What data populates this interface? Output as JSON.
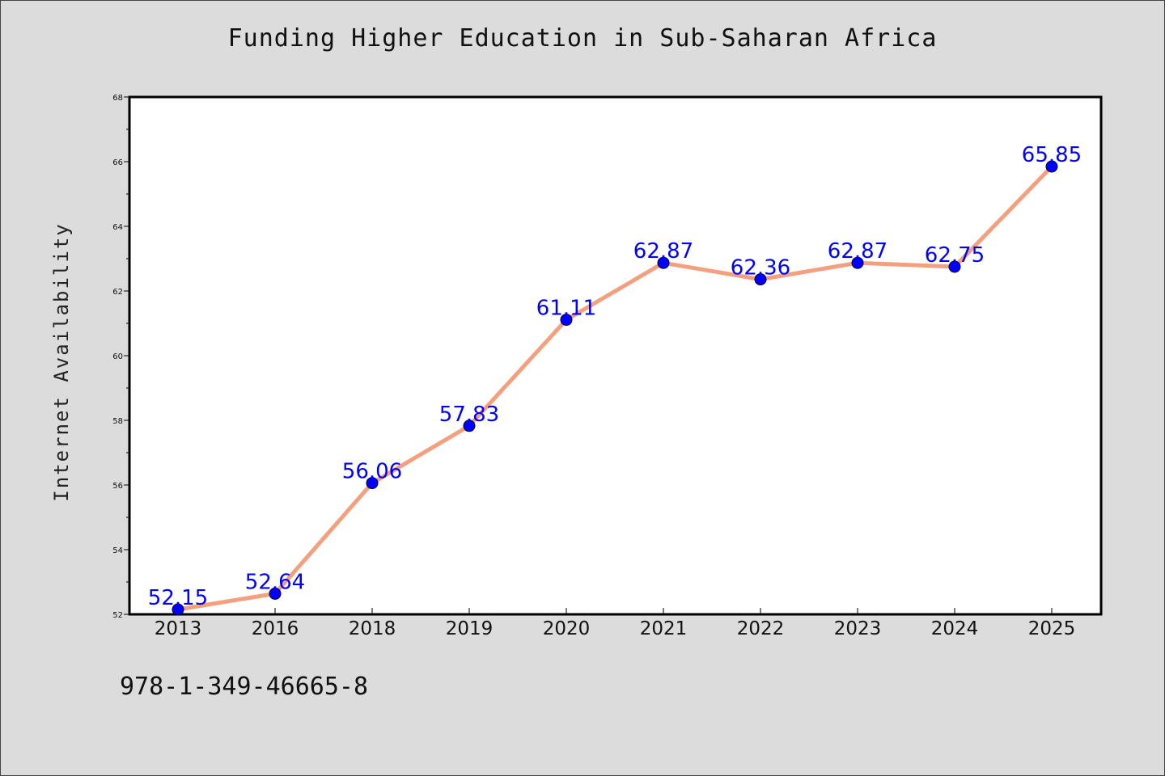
{
  "colors": {
    "background": "#dcdcdc",
    "plot_background": "#ffffff",
    "line": "#f4a07f",
    "marker": "#0000ff",
    "data_label": "#0000ff"
  },
  "footnote": "978-1-349-46665-8",
  "chart_data": {
    "type": "line",
    "title": "Funding Higher Education in Sub-Saharan Africa",
    "xlabel": "",
    "ylabel": "Internet Availability",
    "categories": [
      "2013",
      "2016",
      "2018",
      "2019",
      "2020",
      "2021",
      "2022",
      "2023",
      "2024",
      "2025"
    ],
    "series": [
      {
        "values": [
          52.15,
          52.64,
          56.06,
          57.83,
          61.11,
          62.87,
          62.36,
          62.87,
          62.75,
          65.85
        ]
      }
    ],
    "data_labels": [
      "52.15",
      "52.64",
      "56.06",
      "57.83",
      "61.11",
      "62.87",
      "62.36",
      "62.87",
      "62.75",
      "65.85"
    ],
    "ylim": [
      52,
      68
    ],
    "yticks": [
      52,
      54,
      56,
      58,
      60,
      62,
      64,
      66,
      68
    ],
    "grid": false,
    "legend": "none"
  }
}
